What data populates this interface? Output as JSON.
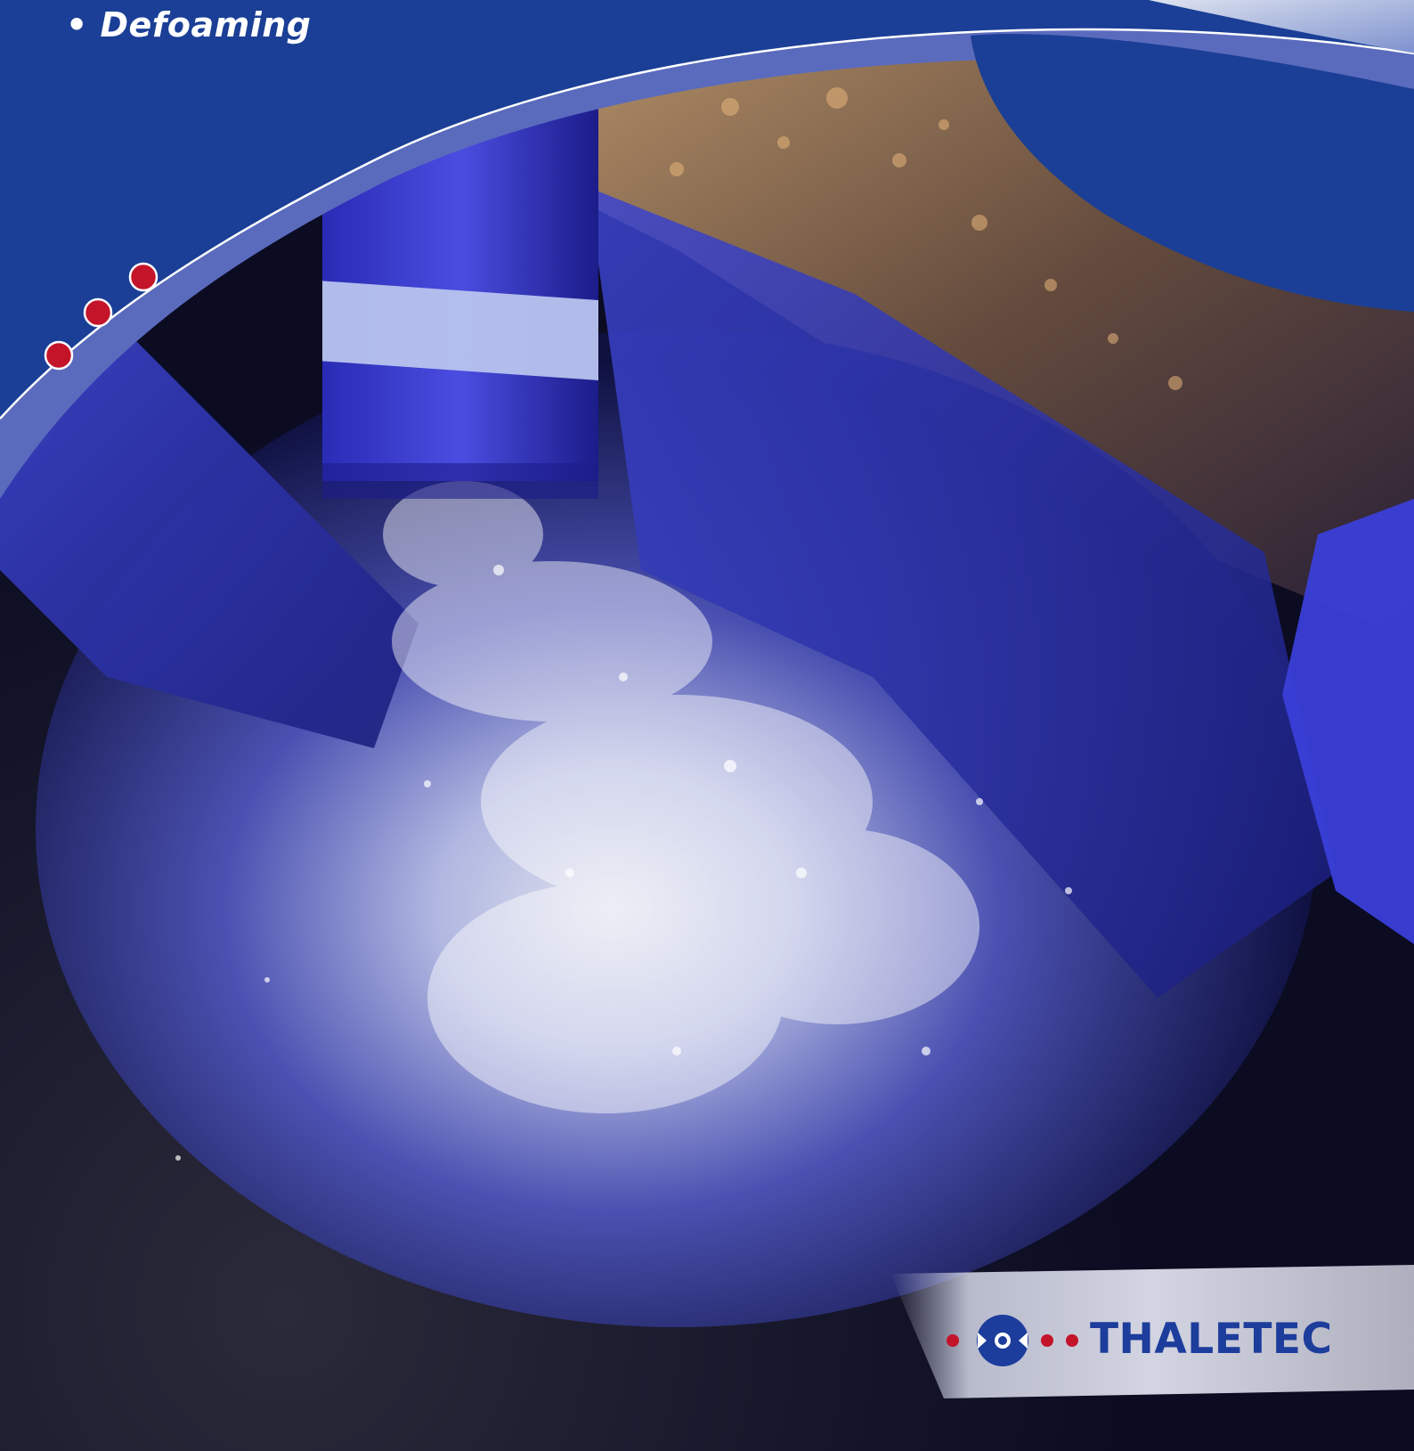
{
  "header": {
    "bullet_item": "• Defoaming"
  },
  "brand": {
    "name": "THALETEC",
    "logo_icon": "thaletec-logo-icon"
  },
  "colors": {
    "brand_blue": "#1b3f96",
    "band_light": "#5a6bbd",
    "dot_red": "#c4142a",
    "logo_text": "#1d3d9c"
  }
}
